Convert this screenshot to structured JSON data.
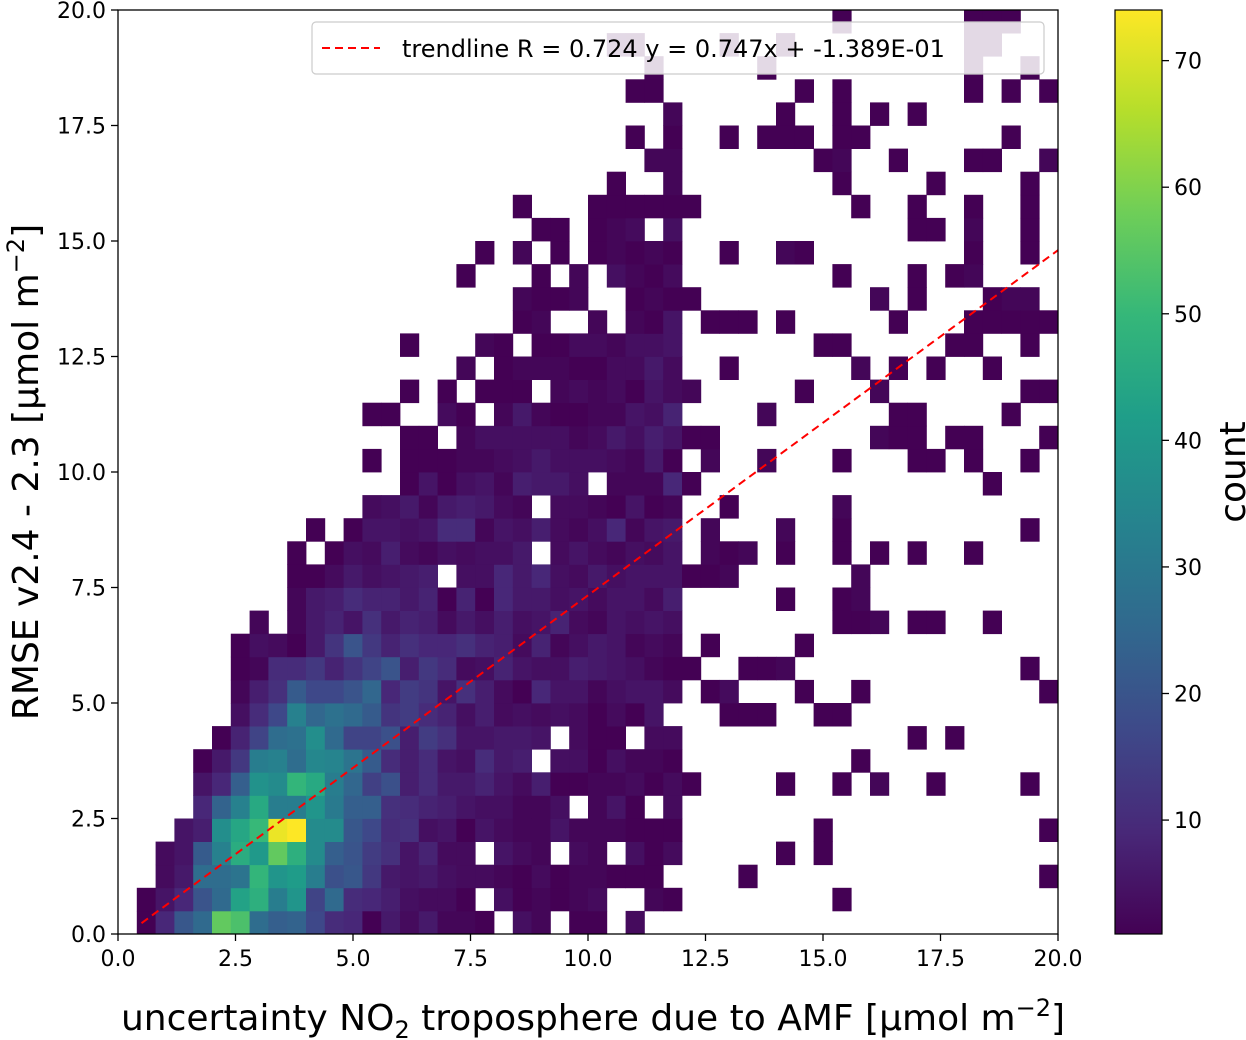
{
  "chart_data": {
    "type": "heatmap",
    "title": "",
    "xlabel": "uncertainty NO₂ troposphere due to AMF [μmol m⁻²]",
    "xlabel_parts": {
      "pre": "uncertainty NO",
      "sub": "2",
      "mid": " troposphere due to AMF [μmol m",
      "sup": "−2",
      "post": "]"
    },
    "ylabel": "RMSE v2.4 - 2.3 [μmol m⁻²]",
    "ylabel_parts": {
      "pre": "RMSE v2.4 - 2.3 [μmol m",
      "sup": "−2",
      "post": "]"
    },
    "xlim": [
      0,
      20
    ],
    "ylim": [
      0,
      20
    ],
    "bins": [
      50,
      40
    ],
    "x_ticks": [
      "0.0",
      "2.5",
      "5.0",
      "7.5",
      "10.0",
      "12.5",
      "15.0",
      "17.5",
      "20.0"
    ],
    "y_ticks": [
      "0.0",
      "2.5",
      "5.0",
      "7.5",
      "10.0",
      "12.5",
      "15.0",
      "17.5",
      "20.0"
    ],
    "x_tick_values": [
      0,
      2.5,
      5,
      7.5,
      10,
      12.5,
      15,
      17.5,
      20
    ],
    "y_tick_values": [
      0,
      2.5,
      5,
      7.5,
      10,
      12.5,
      15,
      17.5,
      20
    ],
    "colorbar": {
      "label": "count",
      "range": [
        1,
        74
      ],
      "ticks": [
        "10",
        "20",
        "30",
        "40",
        "50",
        "60",
        "70"
      ],
      "tick_values": [
        10,
        20,
        30,
        40,
        50,
        60,
        70
      ],
      "colormap": "viridis"
    },
    "trendline": {
      "label": "trendline R = 0.724 y = 0.747x + -1.389E-01",
      "slope": 0.747,
      "intercept": -0.1389,
      "x_range": [
        0.5,
        20
      ],
      "color": "#ff0000",
      "style": "dashed"
    },
    "legend_position": "top-right",
    "grid": false,
    "bin_size": 0.4,
    "peak_bin": {
      "x": 3.8,
      "y": 2.3,
      "count": 74
    }
  }
}
